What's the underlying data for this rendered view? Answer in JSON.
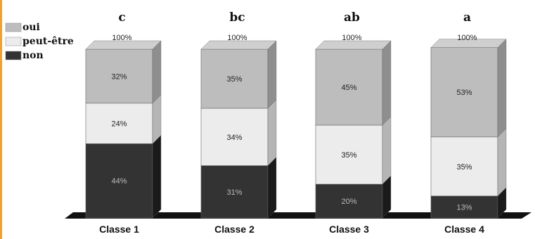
{
  "chart_data": {
    "type": "bar",
    "stacked": true,
    "categories": [
      "Classe 1",
      "Classe 2",
      "Classe 3",
      "Classe 4"
    ],
    "significance_letters": [
      "c",
      "bc",
      "ab",
      "a"
    ],
    "totals": [
      "100%",
      "100%",
      "100%",
      "100%"
    ],
    "series": [
      {
        "name": "non",
        "values": [
          44,
          31,
          20,
          13
        ],
        "labels": [
          "44%",
          "31%",
          "20%",
          "13%"
        ],
        "color": "#333333",
        "side": "#1a1a1a",
        "top": "#555555"
      },
      {
        "name": "peut-être",
        "values": [
          24,
          34,
          35,
          35
        ],
        "labels": [
          "24%",
          "34%",
          "35%",
          "35%"
        ],
        "color": "#ececec",
        "side": "#b5b5b5",
        "top": "#f6f6f6"
      },
      {
        "name": "oui",
        "values": [
          32,
          35,
          45,
          53
        ],
        "labels": [
          "32%",
          "35%",
          "45%",
          "53%"
        ],
        "color": "#bdbdbd",
        "side": "#8e8e8e",
        "top": "#cfcfcf"
      }
    ],
    "legend_order": [
      "oui",
      "peut-être",
      "non"
    ],
    "ylim": [
      0,
      100
    ],
    "legend_position": "top-left",
    "grid": false,
    "title": "",
    "xlabel": "",
    "ylabel": ""
  }
}
